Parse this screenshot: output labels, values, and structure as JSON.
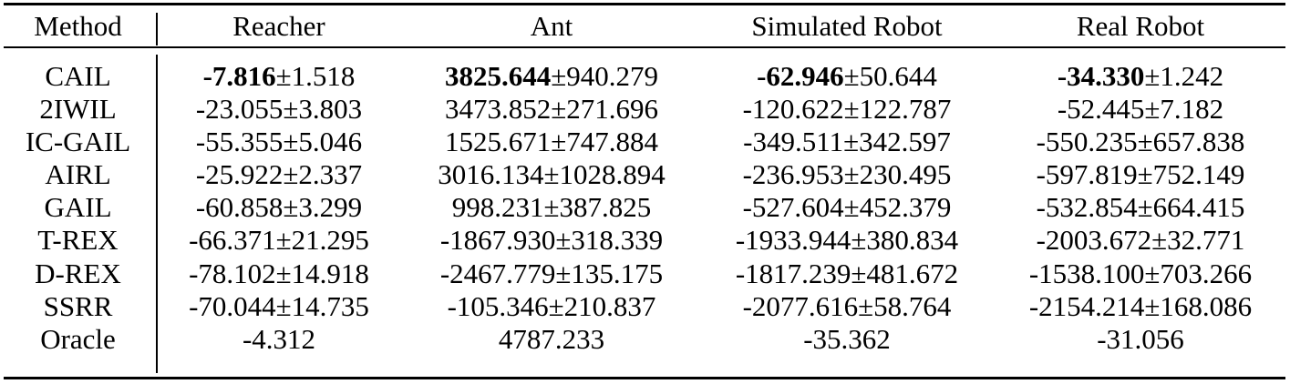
{
  "table": {
    "headers": [
      "Method",
      "Reacher",
      "Ant",
      "Simulated Robot",
      "Real Robot"
    ],
    "rows": [
      {
        "method": "CAIL",
        "cells": [
          {
            "mean": "-7.816",
            "std": "±1.518",
            "bold": true
          },
          {
            "mean": "3825.644",
            "std": "±940.279",
            "bold": true
          },
          {
            "mean": "-62.946",
            "std": "±50.644",
            "bold": true
          },
          {
            "mean": "-34.330",
            "std": "±1.242",
            "bold": true
          }
        ]
      },
      {
        "method": "2IWIL",
        "cells": [
          {
            "mean": "-23.055",
            "std": "±3.803"
          },
          {
            "mean": "3473.852",
            "std": "±271.696"
          },
          {
            "mean": "-120.622",
            "std": "±122.787"
          },
          {
            "mean": "-52.445",
            "std": "±7.182"
          }
        ]
      },
      {
        "method": "IC-GAIL",
        "cells": [
          {
            "mean": "-55.355",
            "std": "±5.046"
          },
          {
            "mean": "1525.671",
            "std": "±747.884"
          },
          {
            "mean": "-349.511",
            "std": "±342.597"
          },
          {
            "mean": "-550.235",
            "std": "±657.838"
          }
        ]
      },
      {
        "method": "AIRL",
        "cells": [
          {
            "mean": "-25.922",
            "std": "±2.337"
          },
          {
            "mean": "3016.134",
            "std": "±1028.894"
          },
          {
            "mean": "-236.953",
            "std": "±230.495"
          },
          {
            "mean": "-597.819",
            "std": "±752.149"
          }
        ]
      },
      {
        "method": "GAIL",
        "cells": [
          {
            "mean": "-60.858",
            "std": "±3.299"
          },
          {
            "mean": "998.231",
            "std": "±387.825"
          },
          {
            "mean": "-527.604",
            "std": "±452.379"
          },
          {
            "mean": "-532.854",
            "std": "±664.415"
          }
        ]
      },
      {
        "method": "T-REX",
        "cells": [
          {
            "mean": "-66.371",
            "std": "±21.295"
          },
          {
            "mean": "-1867.930",
            "std": "±318.339"
          },
          {
            "mean": "-1933.944",
            "std": "±380.834"
          },
          {
            "mean": "-2003.672",
            "std": "±32.771"
          }
        ]
      },
      {
        "method": "D-REX",
        "cells": [
          {
            "mean": "-78.102",
            "std": "±14.918"
          },
          {
            "mean": "-2467.779",
            "std": "±135.175"
          },
          {
            "mean": "-1817.239",
            "std": "±481.672"
          },
          {
            "mean": "-1538.100",
            "std": "±703.266"
          }
        ]
      },
      {
        "method": "SSRR",
        "cells": [
          {
            "mean": "-70.044",
            "std": "±14.735"
          },
          {
            "mean": "-105.346",
            "std": "±210.837"
          },
          {
            "mean": "-2077.616",
            "std": "±58.764"
          },
          {
            "mean": "-2154.214",
            "std": "±168.086"
          }
        ]
      },
      {
        "method": "Oracle",
        "cells": [
          {
            "mean": "-4.312",
            "std": ""
          },
          {
            "mean": "4787.233",
            "std": ""
          },
          {
            "mean": "-35.362",
            "std": ""
          },
          {
            "mean": "-31.056",
            "std": ""
          }
        ]
      }
    ]
  }
}
